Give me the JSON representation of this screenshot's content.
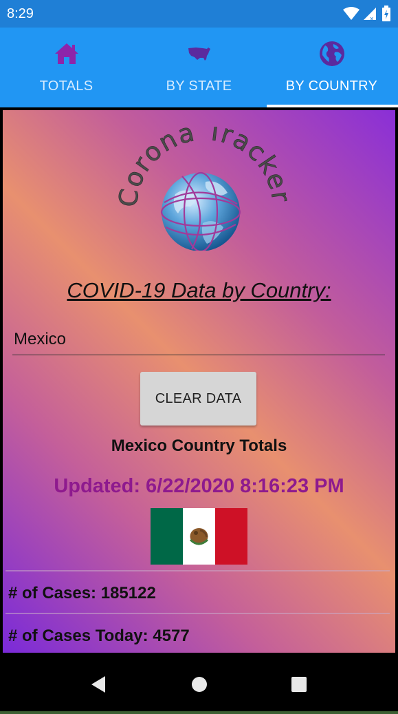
{
  "status_bar": {
    "time": "8:29",
    "icons": [
      "wifi-icon",
      "cell-signal-icon",
      "battery-charging-icon"
    ]
  },
  "tabs": [
    {
      "label": "TOTALS",
      "icon": "home-icon",
      "active": false
    },
    {
      "label": "BY STATE",
      "icon": "usa-map-icon",
      "active": false
    },
    {
      "label": "BY COUNTRY",
      "icon": "globe-icon",
      "active": true
    }
  ],
  "logo": {
    "text": "Corona Tracker"
  },
  "main": {
    "heading": "COVID-19 Data by Country:",
    "country_value": "Mexico",
    "country_placeholder": "",
    "clear_label": "CLEAR DATA",
    "totals_title": "Mexico Country Totals",
    "updated": "Updated: 6/22/2020 8:16:23 PM"
  },
  "stats": [
    {
      "label": "# of Cases: 185122"
    },
    {
      "label": "# of Cases Today: 4577"
    }
  ],
  "colors": {
    "status_bar": "#1f7fd6",
    "tab_bar": "#2196f3",
    "icon_accent": "#8e24aa",
    "updated_text": "#8e1a8e",
    "flag_green": "#006847",
    "flag_red": "#ce1126"
  },
  "nav": [
    "back-icon",
    "home-circle-icon",
    "recents-icon"
  ]
}
